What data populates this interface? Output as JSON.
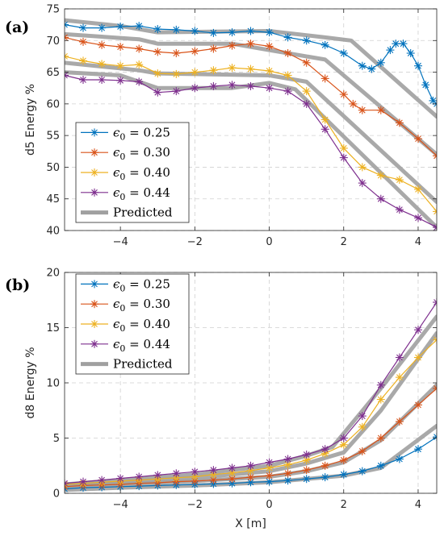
{
  "chart_data": [
    {
      "panel": "(a)",
      "type": "line",
      "xlabel": "",
      "ylabel": "d5 Energy %",
      "xlim": [
        -5.5,
        4.5
      ],
      "ylim": [
        40,
        75
      ],
      "xticks": [
        -4,
        -2,
        0,
        2,
        4
      ],
      "yticks": [
        40,
        45,
        50,
        55,
        60,
        65,
        70,
        75
      ],
      "grid": true,
      "legend_position": "lower-left",
      "series": [
        {
          "name": "ϵ0 = 0.25",
          "label_main": "ϵ",
          "label_sub": "0",
          "label_rest": " = 0.25",
          "color": "#0072BD",
          "marker": "asterisk",
          "x": [
            -5.5,
            -5,
            -4.5,
            -4,
            -3.5,
            -3,
            -2.5,
            -2,
            -1.5,
            -1,
            -0.5,
            0,
            0.5,
            1,
            1.5,
            2,
            2.5,
            2.75,
            3,
            3.25,
            3.4,
            3.6,
            3.8,
            4,
            4.2,
            4.4,
            4.5
          ],
          "y": [
            72.5,
            72,
            72,
            72.2,
            72.3,
            71.8,
            71.7,
            71.5,
            71.2,
            71.3,
            71.5,
            71.3,
            70.5,
            70,
            69.3,
            68,
            66,
            65.5,
            66.5,
            68.5,
            69.5,
            69.5,
            68,
            66,
            63,
            60.5,
            60
          ]
        },
        {
          "name": "ϵ0 = 0.30",
          "label_main": "ϵ",
          "label_sub": "0",
          "label_rest": " = 0.30",
          "color": "#D95319",
          "marker": "asterisk",
          "x": [
            -5.5,
            -5,
            -4.5,
            -4,
            -3.5,
            -3,
            -2.5,
            -2,
            -1.5,
            -1,
            -0.5,
            0,
            0.5,
            1,
            1.5,
            2,
            2.25,
            2.5,
            3,
            3.5,
            4,
            4.5
          ],
          "y": [
            70.5,
            69.8,
            69.3,
            69,
            68.7,
            68.2,
            68,
            68.3,
            68.7,
            69.2,
            69.5,
            69.1,
            68,
            66.5,
            64,
            61.5,
            60,
            59,
            59,
            57,
            54.5,
            51.8
          ]
        },
        {
          "name": "ϵ0 = 0.40",
          "label_main": "ϵ",
          "label_sub": "0",
          "label_rest": " = 0.40",
          "color": "#EDB120",
          "marker": "asterisk",
          "x": [
            -5.5,
            -5,
            -4.5,
            -4,
            -3.5,
            -3,
            -2.5,
            -2,
            -1.5,
            -1,
            -0.5,
            0,
            0.5,
            1,
            1.5,
            2,
            2.5,
            3,
            3.5,
            4,
            4.5
          ],
          "y": [
            67.5,
            66.8,
            66.3,
            66,
            66.2,
            64.8,
            64.7,
            65,
            65.3,
            65.7,
            65.5,
            65.2,
            64.5,
            62,
            57.5,
            53,
            50,
            48.7,
            48,
            46.5,
            43
          ]
        },
        {
          "name": "ϵ0 = 0.44",
          "label_main": "ϵ",
          "label_sub": "0",
          "label_rest": " = 0.44",
          "color": "#7E2F8E",
          "marker": "asterisk",
          "x": [
            -5.5,
            -5,
            -4.5,
            -4,
            -3.5,
            -3,
            -2.5,
            -2,
            -1.5,
            -1,
            -0.5,
            0,
            0.5,
            1,
            1.5,
            2,
            2.5,
            3,
            3.5,
            4,
            4.5
          ],
          "y": [
            64.5,
            63.8,
            63.8,
            63.7,
            63.5,
            61.8,
            62,
            62.5,
            62.8,
            63,
            62.8,
            62.5,
            62,
            60,
            56,
            51.5,
            47.5,
            45,
            43.3,
            42,
            40.5
          ]
        },
        {
          "name": "Predicted",
          "label_main": "Predicted",
          "color": "#A0A0A0",
          "marker": "none",
          "width": 5,
          "x": [
            -5.5,
            -4,
            -3,
            0,
            1.5,
            2.2,
            4.5
          ],
          "y": [
            73.2,
            72.3,
            71.3,
            71.5,
            70.5,
            70,
            58
          ]
        },
        {
          "name": "Predicted",
          "label_main": "Predicted",
          "color": "#A0A0A0",
          "marker": "none",
          "width": 5,
          "legend": false,
          "x": [
            -5.5,
            -3.5,
            -3,
            -1,
            0,
            1.5,
            4.5
          ],
          "y": [
            71,
            70.2,
            69.5,
            69.5,
            68.5,
            67,
            52
          ]
        },
        {
          "name": "Predicted",
          "label_main": "Predicted",
          "color": "#A0A0A0",
          "marker": "none",
          "width": 5,
          "legend": false,
          "x": [
            -5.5,
            -3.5,
            -3,
            0,
            1,
            4.5
          ],
          "y": [
            66.5,
            65.3,
            64.8,
            64.5,
            63.5,
            44.5
          ]
        },
        {
          "name": "Predicted",
          "label_main": "Predicted",
          "color": "#A0A0A0",
          "marker": "none",
          "width": 5,
          "legend": false,
          "x": [
            -5.5,
            -4,
            -3,
            -1,
            0,
            0.7,
            4.5
          ],
          "y": [
            65,
            64.5,
            62.5,
            62.5,
            63.3,
            62.3,
            40.5
          ]
        }
      ]
    },
    {
      "panel": "(b)",
      "type": "line",
      "xlabel": "X [m]",
      "ylabel": "d8 Energy %",
      "xlim": [
        -5.5,
        4.5
      ],
      "ylim": [
        0,
        20
      ],
      "xticks": [
        -4,
        -2,
        0,
        2,
        4
      ],
      "yticks": [
        0,
        5,
        10,
        15,
        20
      ],
      "grid": true,
      "legend_position": "top-left",
      "series": [
        {
          "name": "ϵ0 = 0.25",
          "label_main": "ϵ",
          "label_sub": "0",
          "label_rest": " = 0.25",
          "color": "#0072BD",
          "marker": "asterisk",
          "x": [
            -5.5,
            -5,
            -4.5,
            -4,
            -3.5,
            -3,
            -2.5,
            -2,
            -1.5,
            -1,
            -0.5,
            0,
            0.5,
            1,
            1.5,
            2,
            2.5,
            3,
            3.5,
            4,
            4.5
          ],
          "y": [
            0.4,
            0.5,
            0.55,
            0.6,
            0.65,
            0.7,
            0.75,
            0.8,
            0.85,
            0.9,
            1,
            1.05,
            1.15,
            1.3,
            1.45,
            1.7,
            2,
            2.5,
            3.1,
            4,
            5.1
          ]
        },
        {
          "name": "ϵ0 = 0.30",
          "label_main": "ϵ",
          "label_sub": "0",
          "label_rest": " = 0.30",
          "color": "#D95319",
          "marker": "asterisk",
          "x": [
            -5.5,
            -5,
            -4.5,
            -4,
            -3.5,
            -3,
            -2.5,
            -2,
            -1.5,
            -1,
            -0.5,
            0,
            0.5,
            1,
            1.5,
            2,
            2.5,
            3,
            3.5,
            4,
            4.5
          ],
          "y": [
            0.6,
            0.7,
            0.75,
            0.8,
            0.9,
            0.95,
            1.05,
            1.1,
            1.2,
            1.3,
            1.45,
            1.6,
            1.8,
            2.1,
            2.5,
            3,
            3.8,
            5,
            6.5,
            8,
            9.5
          ]
        },
        {
          "name": "ϵ0 = 0.40",
          "label_main": "ϵ",
          "label_sub": "0",
          "label_rest": " = 0.40",
          "color": "#EDB120",
          "marker": "asterisk",
          "x": [
            -5.5,
            -5,
            -4.5,
            -4,
            -3.5,
            -3,
            -2.5,
            -2,
            -1.5,
            -1,
            -0.5,
            0,
            0.5,
            1,
            1.5,
            2,
            2.5,
            3,
            3.5,
            4,
            4.5
          ],
          "y": [
            0.8,
            0.9,
            1,
            1.1,
            1.2,
            1.3,
            1.4,
            1.5,
            1.7,
            1.85,
            2.05,
            2.3,
            2.6,
            3,
            3.6,
            4.4,
            6,
            8.5,
            10.5,
            12.3,
            13.9
          ]
        },
        {
          "name": "ϵ0 = 0.44",
          "label_main": "ϵ",
          "label_sub": "0",
          "label_rest": " = 0.44",
          "color": "#7E2F8E",
          "marker": "asterisk",
          "x": [
            -5.5,
            -5,
            -4.5,
            -4,
            -3.5,
            -3,
            -2.5,
            -2,
            -1.5,
            -1,
            -0.5,
            0,
            0.5,
            1,
            1.5,
            2,
            2.5,
            3,
            3.5,
            4,
            4.5
          ],
          "y": [
            0.9,
            1.05,
            1.2,
            1.35,
            1.5,
            1.65,
            1.8,
            1.95,
            2.1,
            2.3,
            2.5,
            2.8,
            3.1,
            3.5,
            4,
            5,
            7,
            9.8,
            12.3,
            14.8,
            17.3
          ]
        },
        {
          "name": "Predicted",
          "label_main": "Predicted",
          "color": "#A0A0A0",
          "marker": "none",
          "width": 5,
          "x": [
            -5.5,
            -4,
            -2,
            0,
            2,
            3,
            4.5
          ],
          "y": [
            0.3,
            0.5,
            0.7,
            1,
            1.6,
            2.3,
            6.1
          ]
        },
        {
          "name": "Predicted",
          "label_main": "Predicted",
          "color": "#A0A0A0",
          "marker": "none",
          "width": 5,
          "legend": false,
          "x": [
            -5.5,
            -4,
            -2,
            0,
            1,
            2,
            3,
            4.5
          ],
          "y": [
            0.6,
            0.8,
            1.1,
            1.5,
            2,
            2.8,
            4.8,
            9.8
          ]
        },
        {
          "name": "Predicted",
          "label_main": "Predicted",
          "color": "#A0A0A0",
          "marker": "none",
          "width": 5,
          "legend": false,
          "x": [
            -5.5,
            -4,
            -2,
            0,
            1,
            2,
            3,
            4.5
          ],
          "y": [
            0.7,
            1,
            1.4,
            2,
            2.7,
            3.7,
            7.5,
            14.5
          ]
        },
        {
          "name": "Predicted",
          "label_main": "Predicted",
          "color": "#A0A0A0",
          "marker": "none",
          "width": 5,
          "legend": false,
          "x": [
            -5.5,
            -4,
            -2,
            0,
            1,
            1.7,
            3,
            4.5
          ],
          "y": [
            0.8,
            1.2,
            1.7,
            2.5,
            3.4,
            4.2,
            9.5,
            16
          ]
        }
      ]
    }
  ]
}
